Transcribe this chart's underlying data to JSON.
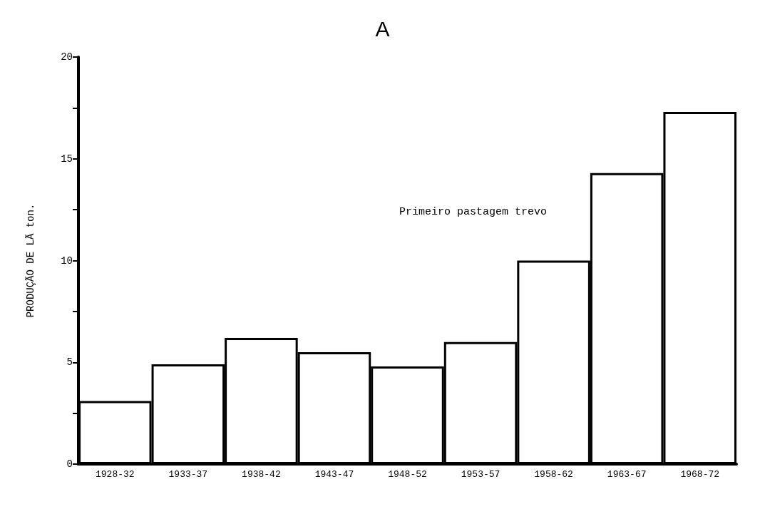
{
  "chart_data": {
    "type": "bar",
    "title": "A",
    "ylabel": "PRODUÇÃO DE LÃ ton.",
    "categories": [
      "1928-32",
      "1933-37",
      "1938-42",
      "1943-47",
      "1948-52",
      "1953-57",
      "1958-62",
      "1963-67",
      "1968-72"
    ],
    "values": [
      3.1,
      4.9,
      6.2,
      5.5,
      4.8,
      6.0,
      10.0,
      14.3,
      17.3
    ],
    "color": "#000000",
    "ylim": [
      0,
      20
    ],
    "yticks": [
      0,
      {
        "value": 2.5,
        "label": null
      },
      5,
      {
        "value": 7.5,
        "label": null
      },
      10,
      {
        "value": 12.5,
        "label": null
      },
      15,
      {
        "value": 17.5,
        "label": null
      },
      20
    ],
    "annotations": [
      "Primeiro pastagem trevo"
    ],
    "grid": false
  }
}
